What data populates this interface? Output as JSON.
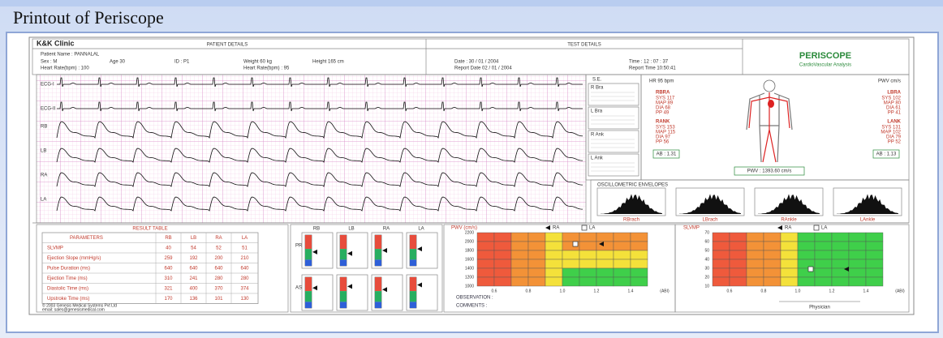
{
  "title": "Printout of Periscope",
  "report": {
    "clinic": "K&K Clinic",
    "patient_details": {
      "heading": "PATIENT DETAILS",
      "fields": [
        "Patient Name : PANNALAL",
        "Sex : M",
        "Age 30",
        "ID : P1",
        "Weight 60 kg",
        "Height 165 cm",
        "Heart Rate(bpm) : 100",
        "Heart Rate(bpm) : 95"
      ]
    },
    "test_details": {
      "heading": "TEST DETAILS",
      "fields": [
        "Date : 30 / 01 / 2004",
        "Time : 12 : 07 : 37",
        "Report Date 02 / 01 / 2004",
        "Report Time 10:50:41"
      ]
    },
    "brand": {
      "name": "PERISCOPE",
      "subtitle": "CardioVascular Analysis"
    },
    "waveform_labels": [
      "ECG-I",
      "ECG-II",
      "RB",
      "LB",
      "RA",
      "LA"
    ],
    "se_panel": {
      "heading": "S.E.",
      "items": [
        "R Bra",
        "L Bra",
        "R Ank",
        "L Ank"
      ]
    },
    "body_panel": {
      "hr": "HR 95 bpm",
      "unit": "PWV cm/s",
      "sites": [
        {
          "name": "RBRA",
          "lines": [
            "SYS 117",
            "MAP 89",
            "DIA 68",
            "PP 49"
          ]
        },
        {
          "name": "LBRA",
          "lines": [
            "SYS 102",
            "MAP 80",
            "DIA 61",
            "PP 41"
          ]
        },
        {
          "name": "RANK",
          "lines": [
            "SYS 153",
            "MAP 115",
            "DIA 97",
            "PP 56"
          ]
        },
        {
          "name": "LANK",
          "lines": [
            "SYS 131",
            "MAP 102",
            "DIA 79",
            "PP 52"
          ]
        }
      ],
      "abi_left": "AB : 1.31",
      "abi_right": "AB : 1.13",
      "pwv": "PWV : 1393.60 cm/s"
    },
    "envelopes": {
      "heading": "OSCILLOMETRIC ENVELOPES",
      "labels": [
        "RBrach",
        "LBrach",
        "RAnkle",
        "LAnkle"
      ]
    },
    "result_table": {
      "heading": "RESULT TABLE",
      "columns": [
        "PARAMETERS",
        "RB",
        "LB",
        "RA",
        "LA"
      ],
      "rows": [
        [
          "SLVMP",
          40,
          54,
          52,
          51
        ],
        [
          "Ejection Slope (mmHg/s)",
          259,
          192,
          200,
          210
        ],
        [
          "Pulse Duration (ms)",
          640,
          640,
          640,
          640
        ],
        [
          "Ejection Time (ms)",
          310,
          241,
          280,
          280
        ],
        [
          "Diastolic Time (ms)",
          321,
          400,
          370,
          374
        ],
        [
          "Upstroke Time (ms)",
          170,
          136,
          101,
          130
        ]
      ],
      "footer": [
        "© 2003 Genesis Medical Systems Pvt Ltd",
        "email: sales@genesismedical.com"
      ]
    },
    "gauges": {
      "columns": [
        "RB",
        "LB",
        "RA",
        "LA"
      ],
      "rows": [
        "PR",
        "ASI"
      ]
    },
    "pwv_chart": {
      "title": "PWV (cm/s)",
      "legend": [
        "RA",
        "LA"
      ],
      "yticks": [
        "2200",
        "2000",
        "1800",
        "1600",
        "1400",
        "1200",
        "1000"
      ],
      "xticks": [
        "0.6",
        "0.8",
        "1.0",
        "1.2",
        "1.4",
        "(ABI)"
      ]
    },
    "slvmp_chart": {
      "title": "SLVMP",
      "legend": [
        "RA",
        "LA"
      ],
      "yticks": [
        "70",
        "60",
        "50",
        "40",
        "30",
        "20",
        "10"
      ],
      "xticks": [
        "0.6",
        "0.8",
        "1.0",
        "1.2",
        "1.4",
        "(ABI)"
      ]
    },
    "observation": "OBSERVATION :",
    "comments": "COMMENTS :",
    "physician": "Physician"
  }
}
